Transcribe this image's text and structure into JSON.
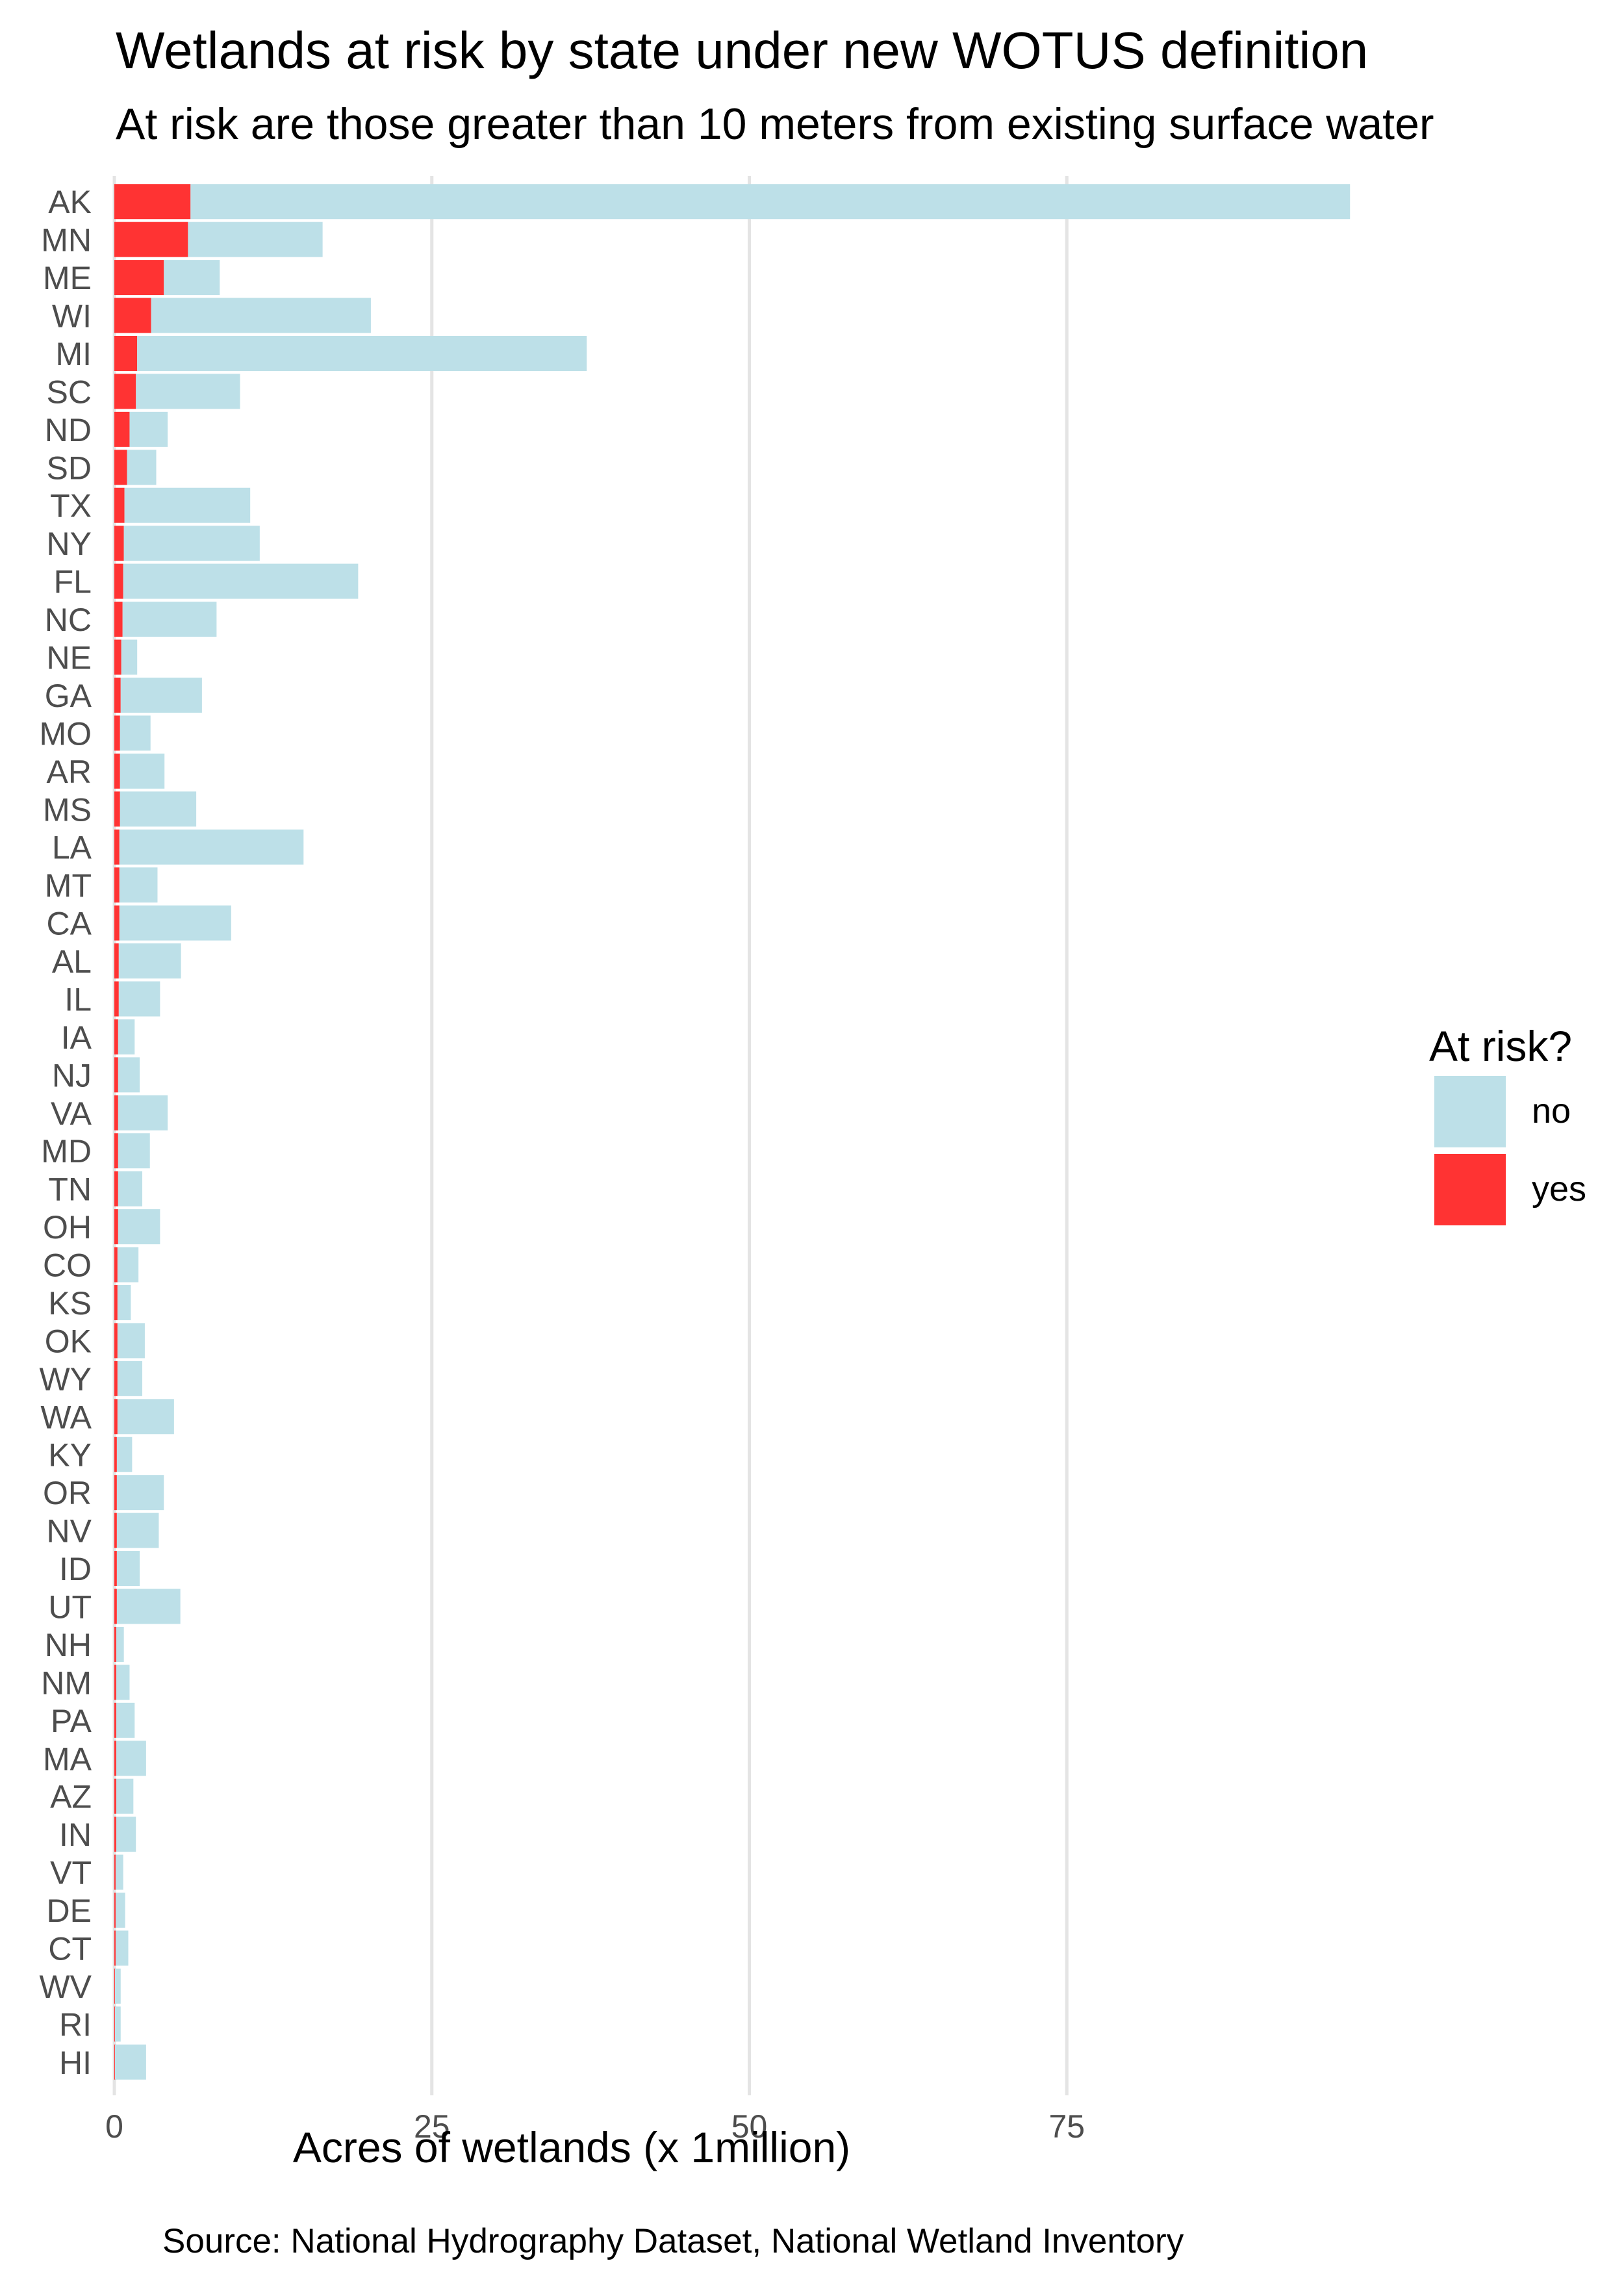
{
  "title": "Wetlands at risk by state under new WOTUS definition",
  "subtitle": "At risk are those greater than 10 meters from existing surface water",
  "caption": "Source: National Hydrography Dataset, National Wetland Inventory",
  "legend": {
    "title": "At risk?",
    "items": [
      {
        "label": "no",
        "color": "#bde0e8"
      },
      {
        "label": "yes",
        "color": "#ff3333"
      }
    ]
  },
  "chart_data": {
    "type": "bar",
    "orientation": "horizontal",
    "stacked": true,
    "xlabel": "Acres of wetlands (x 1million)",
    "ylabel": "",
    "xlim": [
      0,
      100
    ],
    "xticks": [
      0,
      25,
      50,
      75
    ],
    "grid": true,
    "legend_position": "right",
    "categories": [
      "AK",
      "MN",
      "ME",
      "WI",
      "MI",
      "SC",
      "ND",
      "SD",
      "TX",
      "NY",
      "FL",
      "NC",
      "NE",
      "GA",
      "MO",
      "AR",
      "MS",
      "LA",
      "MT",
      "CA",
      "AL",
      "IL",
      "IA",
      "NJ",
      "VA",
      "MD",
      "TN",
      "OH",
      "CO",
      "KS",
      "OK",
      "WY",
      "WA",
      "KY",
      "OR",
      "NV",
      "ID",
      "UT",
      "NH",
      "NM",
      "PA",
      "MA",
      "AZ",
      "IN",
      "VT",
      "DE",
      "CT",
      "WV",
      "RI",
      "HI"
    ],
    "series": [
      {
        "name": "yes",
        "color": "#ff3333",
        "values": [
          6.0,
          5.8,
          3.9,
          2.9,
          1.8,
          1.7,
          1.2,
          1.0,
          0.8,
          0.75,
          0.7,
          0.65,
          0.55,
          0.5,
          0.45,
          0.45,
          0.45,
          0.4,
          0.4,
          0.4,
          0.35,
          0.35,
          0.3,
          0.3,
          0.3,
          0.3,
          0.3,
          0.3,
          0.25,
          0.25,
          0.25,
          0.25,
          0.25,
          0.2,
          0.2,
          0.2,
          0.2,
          0.2,
          0.15,
          0.15,
          0.15,
          0.15,
          0.15,
          0.15,
          0.1,
          0.1,
          0.1,
          0.05,
          0.05,
          0.05
        ]
      },
      {
        "name": "no",
        "color": "#bde0e8",
        "values": [
          91.3,
          10.6,
          4.4,
          17.3,
          35.4,
          8.2,
          3.0,
          2.3,
          9.9,
          10.7,
          18.5,
          7.4,
          1.25,
          6.4,
          2.4,
          3.5,
          6.0,
          14.5,
          3.0,
          8.8,
          4.9,
          3.25,
          1.3,
          1.7,
          3.9,
          2.5,
          1.9,
          3.3,
          1.65,
          1.05,
          2.15,
          1.95,
          4.45,
          1.2,
          3.7,
          3.3,
          1.8,
          5.0,
          0.6,
          1.05,
          1.45,
          2.35,
          1.35,
          1.55,
          0.6,
          0.75,
          1.0,
          0.45,
          0.45,
          2.45
        ]
      }
    ]
  }
}
